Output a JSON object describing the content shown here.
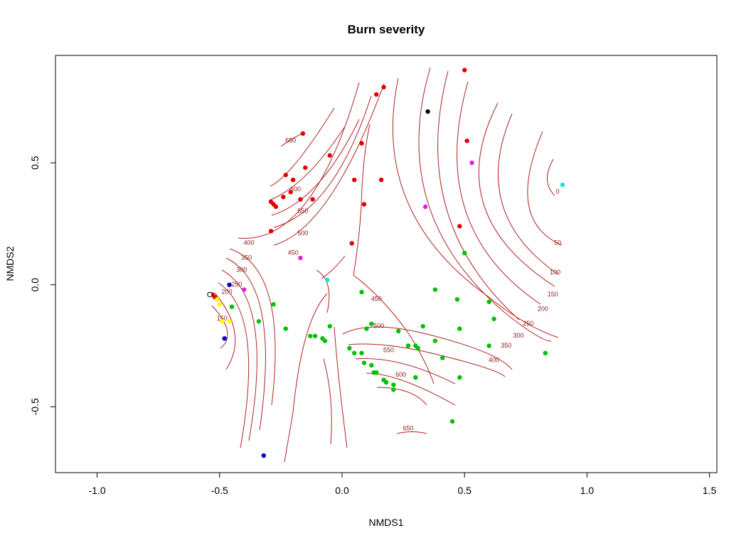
{
  "chart_data": {
    "type": "scatter",
    "title": "Burn severity",
    "xlabel": "NMDS1",
    "ylabel": "NMDS2",
    "xlim": [
      -1.17,
      1.53
    ],
    "ylim": [
      -0.77,
      0.94
    ],
    "xticks": [
      -1.0,
      -0.5,
      0.0,
      0.5,
      1.0,
      1.5
    ],
    "xtick_labels": [
      "-1.0",
      "-0.5",
      "0.0",
      "0.5",
      "1.0",
      "1.5"
    ],
    "yticks": [
      -0.5,
      0.0,
      0.5
    ],
    "ytick_labels": [
      "-0.5",
      "0.0",
      "0.5"
    ],
    "grid": false,
    "colors": {
      "red": "#e00000",
      "green": "#00c000",
      "blue": "#0000cc",
      "yellow": "#ffff00",
      "magenta": "#e020e0",
      "cyan": "#20e0e0",
      "black": "#000000",
      "contour": "#b22222"
    },
    "contours": {
      "color": "#b22222",
      "labels": [
        {
          "text": "650",
          "x": -0.21,
          "y": 0.59
        },
        {
          "text": "600",
          "x": -0.19,
          "y": 0.39
        },
        {
          "text": "550",
          "x": -0.16,
          "y": 0.3
        },
        {
          "text": "500",
          "x": -0.16,
          "y": 0.21
        },
        {
          "text": "400",
          "x": -0.38,
          "y": 0.17
        },
        {
          "text": "350",
          "x": -0.39,
          "y": 0.11
        },
        {
          "text": "300",
          "x": -0.41,
          "y": 0.06
        },
        {
          "text": "250",
          "x": -0.43,
          "y": 0.0
        },
        {
          "text": "200",
          "x": -0.47,
          "y": -0.03
        },
        {
          "text": "150",
          "x": -0.49,
          "y": -0.14
        },
        {
          "text": "450",
          "x": -0.2,
          "y": 0.13
        },
        {
          "text": "450",
          "x": 0.14,
          "y": -0.06
        },
        {
          "text": "500",
          "x": 0.15,
          "y": -0.17
        },
        {
          "text": "550",
          "x": 0.19,
          "y": -0.27
        },
        {
          "text": "600",
          "x": 0.24,
          "y": -0.37
        },
        {
          "text": "650",
          "x": 0.27,
          "y": -0.59
        },
        {
          "text": "0",
          "x": 0.88,
          "y": 0.38
        },
        {
          "text": "50",
          "x": 0.88,
          "y": 0.17
        },
        {
          "text": "100",
          "x": 0.87,
          "y": 0.05
        },
        {
          "text": "150",
          "x": 0.86,
          "y": -0.04
        },
        {
          "text": "200",
          "x": 0.82,
          "y": -0.1
        },
        {
          "text": "250",
          "x": 0.76,
          "y": -0.16
        },
        {
          "text": "300",
          "x": 0.72,
          "y": -0.21
        },
        {
          "text": "350",
          "x": 0.67,
          "y": -0.25
        },
        {
          "text": "400",
          "x": 0.62,
          "y": -0.31
        }
      ]
    },
    "series": [
      {
        "color": "red",
        "points": [
          [
            0.5,
            0.88
          ],
          [
            0.17,
            0.81
          ],
          [
            0.14,
            0.78
          ],
          [
            -0.16,
            0.62
          ],
          [
            0.08,
            0.58
          ],
          [
            0.51,
            0.59
          ],
          [
            -0.05,
            0.53
          ],
          [
            -0.15,
            0.48
          ],
          [
            -0.23,
            0.45
          ],
          [
            -0.2,
            0.43
          ],
          [
            0.05,
            0.43
          ],
          [
            0.16,
            0.43
          ],
          [
            -0.21,
            0.38
          ],
          [
            -0.24,
            0.36
          ],
          [
            -0.17,
            0.35
          ],
          [
            -0.12,
            0.35
          ],
          [
            -0.29,
            0.34
          ],
          [
            -0.28,
            0.33
          ],
          [
            -0.27,
            0.32
          ],
          [
            0.09,
            0.33
          ],
          [
            0.48,
            0.24
          ],
          [
            -0.29,
            0.22
          ],
          [
            0.04,
            0.17
          ],
          [
            -0.53,
            -0.04
          ],
          [
            -0.52,
            -0.05
          ]
        ]
      },
      {
        "color": "green",
        "points": [
          [
            0.5,
            0.13
          ],
          [
            0.38,
            -0.02
          ],
          [
            0.08,
            -0.03
          ],
          [
            0.47,
            -0.06
          ],
          [
            0.6,
            -0.07
          ],
          [
            -0.28,
            -0.08
          ],
          [
            -0.45,
            -0.09
          ],
          [
            0.62,
            -0.14
          ],
          [
            -0.34,
            -0.15
          ],
          [
            0.12,
            -0.16
          ],
          [
            0.33,
            -0.17
          ],
          [
            -0.05,
            -0.17
          ],
          [
            -0.23,
            -0.18
          ],
          [
            0.1,
            -0.18
          ],
          [
            0.48,
            -0.18
          ],
          [
            0.23,
            -0.19
          ],
          [
            -0.13,
            -0.21
          ],
          [
            -0.11,
            -0.21
          ],
          [
            -0.08,
            -0.22
          ],
          [
            -0.07,
            -0.23
          ],
          [
            0.38,
            -0.23
          ],
          [
            0.27,
            -0.25
          ],
          [
            0.3,
            -0.25
          ],
          [
            0.6,
            -0.25
          ],
          [
            0.31,
            -0.26
          ],
          [
            0.03,
            -0.26
          ],
          [
            0.05,
            -0.28
          ],
          [
            0.08,
            -0.28
          ],
          [
            0.83,
            -0.28
          ],
          [
            0.41,
            -0.3
          ],
          [
            0.09,
            -0.32
          ],
          [
            0.12,
            -0.33
          ],
          [
            0.13,
            -0.36
          ],
          [
            0.14,
            -0.36
          ],
          [
            0.48,
            -0.38
          ],
          [
            0.3,
            -0.38
          ],
          [
            0.17,
            -0.39
          ],
          [
            0.18,
            -0.4
          ],
          [
            0.21,
            -0.41
          ],
          [
            0.21,
            -0.43
          ],
          [
            0.45,
            -0.56
          ]
        ]
      },
      {
        "color": "blue",
        "points": [
          [
            -0.46,
            0.0
          ],
          [
            -0.48,
            -0.22
          ],
          [
            -0.32,
            -0.7
          ]
        ]
      },
      {
        "color": "yellow",
        "points": [
          [
            -0.51,
            -0.06
          ],
          [
            -0.5,
            -0.08
          ],
          [
            -0.49,
            -0.15
          ],
          [
            -0.46,
            -0.15
          ]
        ]
      },
      {
        "color": "magenta",
        "points": [
          [
            0.53,
            0.5
          ],
          [
            0.34,
            0.32
          ],
          [
            -0.17,
            0.11
          ],
          [
            -0.4,
            -0.02
          ]
        ]
      },
      {
        "color": "cyan",
        "points": [
          [
            0.9,
            0.41
          ],
          [
            -0.06,
            0.02
          ]
        ]
      },
      {
        "color": "black",
        "points": [
          [
            0.35,
            0.71
          ]
        ]
      },
      {
        "color": "open",
        "points": [
          [
            -0.54,
            -0.04
          ]
        ]
      }
    ]
  }
}
